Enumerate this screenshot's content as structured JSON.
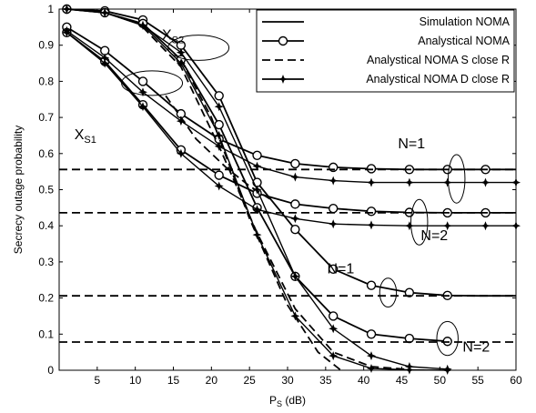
{
  "chart_data": {
    "type": "line",
    "title": "",
    "xlabel": "P",
    "xlabel_sub": "S",
    "xlabel_unit": " (dB)",
    "ylabel": "Secrecy outage probability",
    "xlim": [
      0,
      60
    ],
    "ylim": [
      0,
      1
    ],
    "xticks": [
      5,
      10,
      15,
      20,
      25,
      30,
      35,
      40,
      45,
      50,
      55,
      60
    ],
    "yticks": [
      0,
      0.1,
      0.2,
      0.3,
      0.4,
      0.5,
      0.6,
      0.7,
      0.8,
      0.9,
      1
    ],
    "grid": false,
    "legend_position": "top-right",
    "legend": [
      {
        "label": "Simulation NOMA",
        "style": "solid"
      },
      {
        "label": "Analystical NOMA",
        "style": "solid-circle"
      },
      {
        "label": "Analystical NOMA S close R",
        "style": "dashed"
      },
      {
        "label": "Analystical NOMA D close R",
        "style": "solid-star"
      }
    ],
    "series": [
      {
        "style": "solid",
        "x": [
          1,
          6,
          11,
          16,
          21,
          26,
          31,
          36,
          41,
          46,
          51,
          55,
          60
        ],
        "y": [
          0.95,
          0.885,
          0.8,
          0.71,
          0.64,
          0.595,
          0.572,
          0.562,
          0.558,
          0.556,
          0.556,
          0.556,
          0.556
        ]
      },
      {
        "style": "solid",
        "x": [
          1,
          6,
          11,
          16,
          21,
          26,
          31,
          36,
          41,
          46,
          51,
          55,
          60
        ],
        "y": [
          0.935,
          0.855,
          0.735,
          0.61,
          0.54,
          0.49,
          0.46,
          0.448,
          0.44,
          0.437,
          0.436,
          0.436,
          0.436
        ]
      },
      {
        "style": "solid",
        "x": [
          1,
          6,
          11,
          16,
          21,
          26,
          31,
          36,
          41,
          46,
          51,
          55,
          60
        ],
        "y": [
          1.0,
          0.995,
          0.97,
          0.9,
          0.76,
          0.52,
          0.39,
          0.28,
          0.235,
          0.215,
          0.207,
          0.206,
          0.206
        ]
      },
      {
        "style": "solid",
        "x": [
          1,
          6,
          11,
          16,
          21,
          26,
          31,
          36,
          41,
          46,
          51
        ],
        "y": [
          1.0,
          0.99,
          0.96,
          0.86,
          0.68,
          0.45,
          0.26,
          0.15,
          0.1,
          0.088,
          0.08
        ]
      },
      {
        "style": "circle",
        "x": [
          1,
          6,
          11,
          16,
          21,
          26,
          31,
          36,
          41,
          46,
          51,
          56
        ],
        "y": [
          0.95,
          0.885,
          0.8,
          0.71,
          0.64,
          0.595,
          0.572,
          0.562,
          0.558,
          0.556,
          0.556,
          0.556
        ]
      },
      {
        "style": "circle",
        "x": [
          1,
          6,
          11,
          16,
          21,
          26,
          31,
          36,
          41,
          46,
          51,
          56
        ],
        "y": [
          0.935,
          0.855,
          0.735,
          0.61,
          0.54,
          0.49,
          0.46,
          0.448,
          0.44,
          0.437,
          0.436,
          0.436
        ]
      },
      {
        "style": "circle",
        "x": [
          1,
          6,
          11,
          16,
          21,
          26,
          31,
          36,
          41,
          46,
          51
        ],
        "y": [
          1.0,
          0.995,
          0.97,
          0.9,
          0.76,
          0.52,
          0.39,
          0.28,
          0.235,
          0.215,
          0.207
        ]
      },
      {
        "style": "circle",
        "x": [
          1,
          6,
          11,
          16,
          21,
          26,
          31,
          36,
          41,
          46,
          51
        ],
        "y": [
          1.0,
          0.99,
          0.96,
          0.86,
          0.68,
          0.45,
          0.26,
          0.15,
          0.1,
          0.088,
          0.08
        ]
      },
      {
        "style": "star",
        "x": [
          1,
          6,
          11,
          16,
          21,
          26,
          31,
          36,
          41,
          46,
          51,
          56,
          60
        ],
        "y": [
          0.94,
          0.865,
          0.77,
          0.69,
          0.62,
          0.565,
          0.535,
          0.525,
          0.52,
          0.52,
          0.52,
          0.52,
          0.52
        ]
      },
      {
        "style": "star",
        "x": [
          1,
          6,
          11,
          16,
          21,
          26,
          31,
          36,
          41,
          46,
          51,
          56,
          60
        ],
        "y": [
          0.935,
          0.85,
          0.73,
          0.6,
          0.51,
          0.445,
          0.42,
          0.405,
          0.402,
          0.4,
          0.4,
          0.4,
          0.4
        ]
      },
      {
        "style": "star",
        "x": [
          1,
          6,
          11,
          16,
          21,
          26,
          31,
          36,
          41,
          46,
          51
        ],
        "y": [
          1.0,
          0.99,
          0.955,
          0.88,
          0.73,
          0.5,
          0.26,
          0.115,
          0.04,
          0.01,
          0.003
        ]
      },
      {
        "style": "star",
        "x": [
          1,
          6,
          11,
          16,
          21,
          26,
          31,
          36,
          41,
          46,
          51
        ],
        "y": [
          1.0,
          0.99,
          0.955,
          0.85,
          0.65,
          0.375,
          0.15,
          0.04,
          0.005,
          0.001,
          0.0
        ]
      },
      {
        "style": "dashed",
        "x": [
          0,
          60
        ],
        "y": [
          0.556,
          0.556
        ]
      },
      {
        "style": "dashed",
        "x": [
          0,
          60
        ],
        "y": [
          0.436,
          0.436
        ]
      },
      {
        "style": "dashed",
        "x": [
          0,
          60
        ],
        "y": [
          0.206,
          0.206
        ]
      },
      {
        "style": "dashed",
        "x": [
          0,
          60
        ],
        "y": [
          0.078,
          0.078
        ]
      },
      {
        "style": "dashed",
        "x": [
          11,
          16,
          21,
          26,
          31,
          36,
          41,
          46
        ],
        "y": [
          0.95,
          0.84,
          0.62,
          0.38,
          0.17,
          0.05,
          0.01,
          0.002
        ]
      },
      {
        "style": "dashed",
        "x": [
          16,
          20,
          25,
          30,
          34,
          37
        ],
        "y": [
          0.86,
          0.7,
          0.42,
          0.18,
          0.05,
          0.0
        ]
      },
      {
        "style": "dashed",
        "x": [
          14,
          18,
          22,
          25,
          28
        ],
        "y": [
          0.76,
          0.64,
          0.56,
          0.51,
          0.47
        ]
      }
    ],
    "annotations": [
      {
        "text": "X",
        "sub": "S2",
        "x": 13.5,
        "y": 0.915
      },
      {
        "text": "X",
        "sub": "S1",
        "x": 2.0,
        "y": 0.64
      },
      {
        "text": "N=1",
        "x": 44.5,
        "y": 0.615
      },
      {
        "text": "N=2",
        "x": 47.5,
        "y": 0.36
      },
      {
        "text": "N=1",
        "x": 35.2,
        "y": 0.268
      },
      {
        "text": "N=2",
        "x": 53.0,
        "y": 0.052
      }
    ],
    "ellipses": [
      {
        "cx": 12.2,
        "cy": 0.795,
        "rx": 4.0,
        "ry": 0.034
      },
      {
        "cx": 18.3,
        "cy": 0.893,
        "rx": 4.0,
        "ry": 0.035
      },
      {
        "cx": 52.2,
        "cy": 0.53,
        "rx": 1.1,
        "ry": 0.067
      },
      {
        "cx": 47.3,
        "cy": 0.41,
        "rx": 1.1,
        "ry": 0.063
      },
      {
        "cx": 43.2,
        "cy": 0.215,
        "rx": 1.1,
        "ry": 0.04
      },
      {
        "cx": 51.0,
        "cy": 0.088,
        "rx": 1.4,
        "ry": 0.047
      }
    ]
  }
}
